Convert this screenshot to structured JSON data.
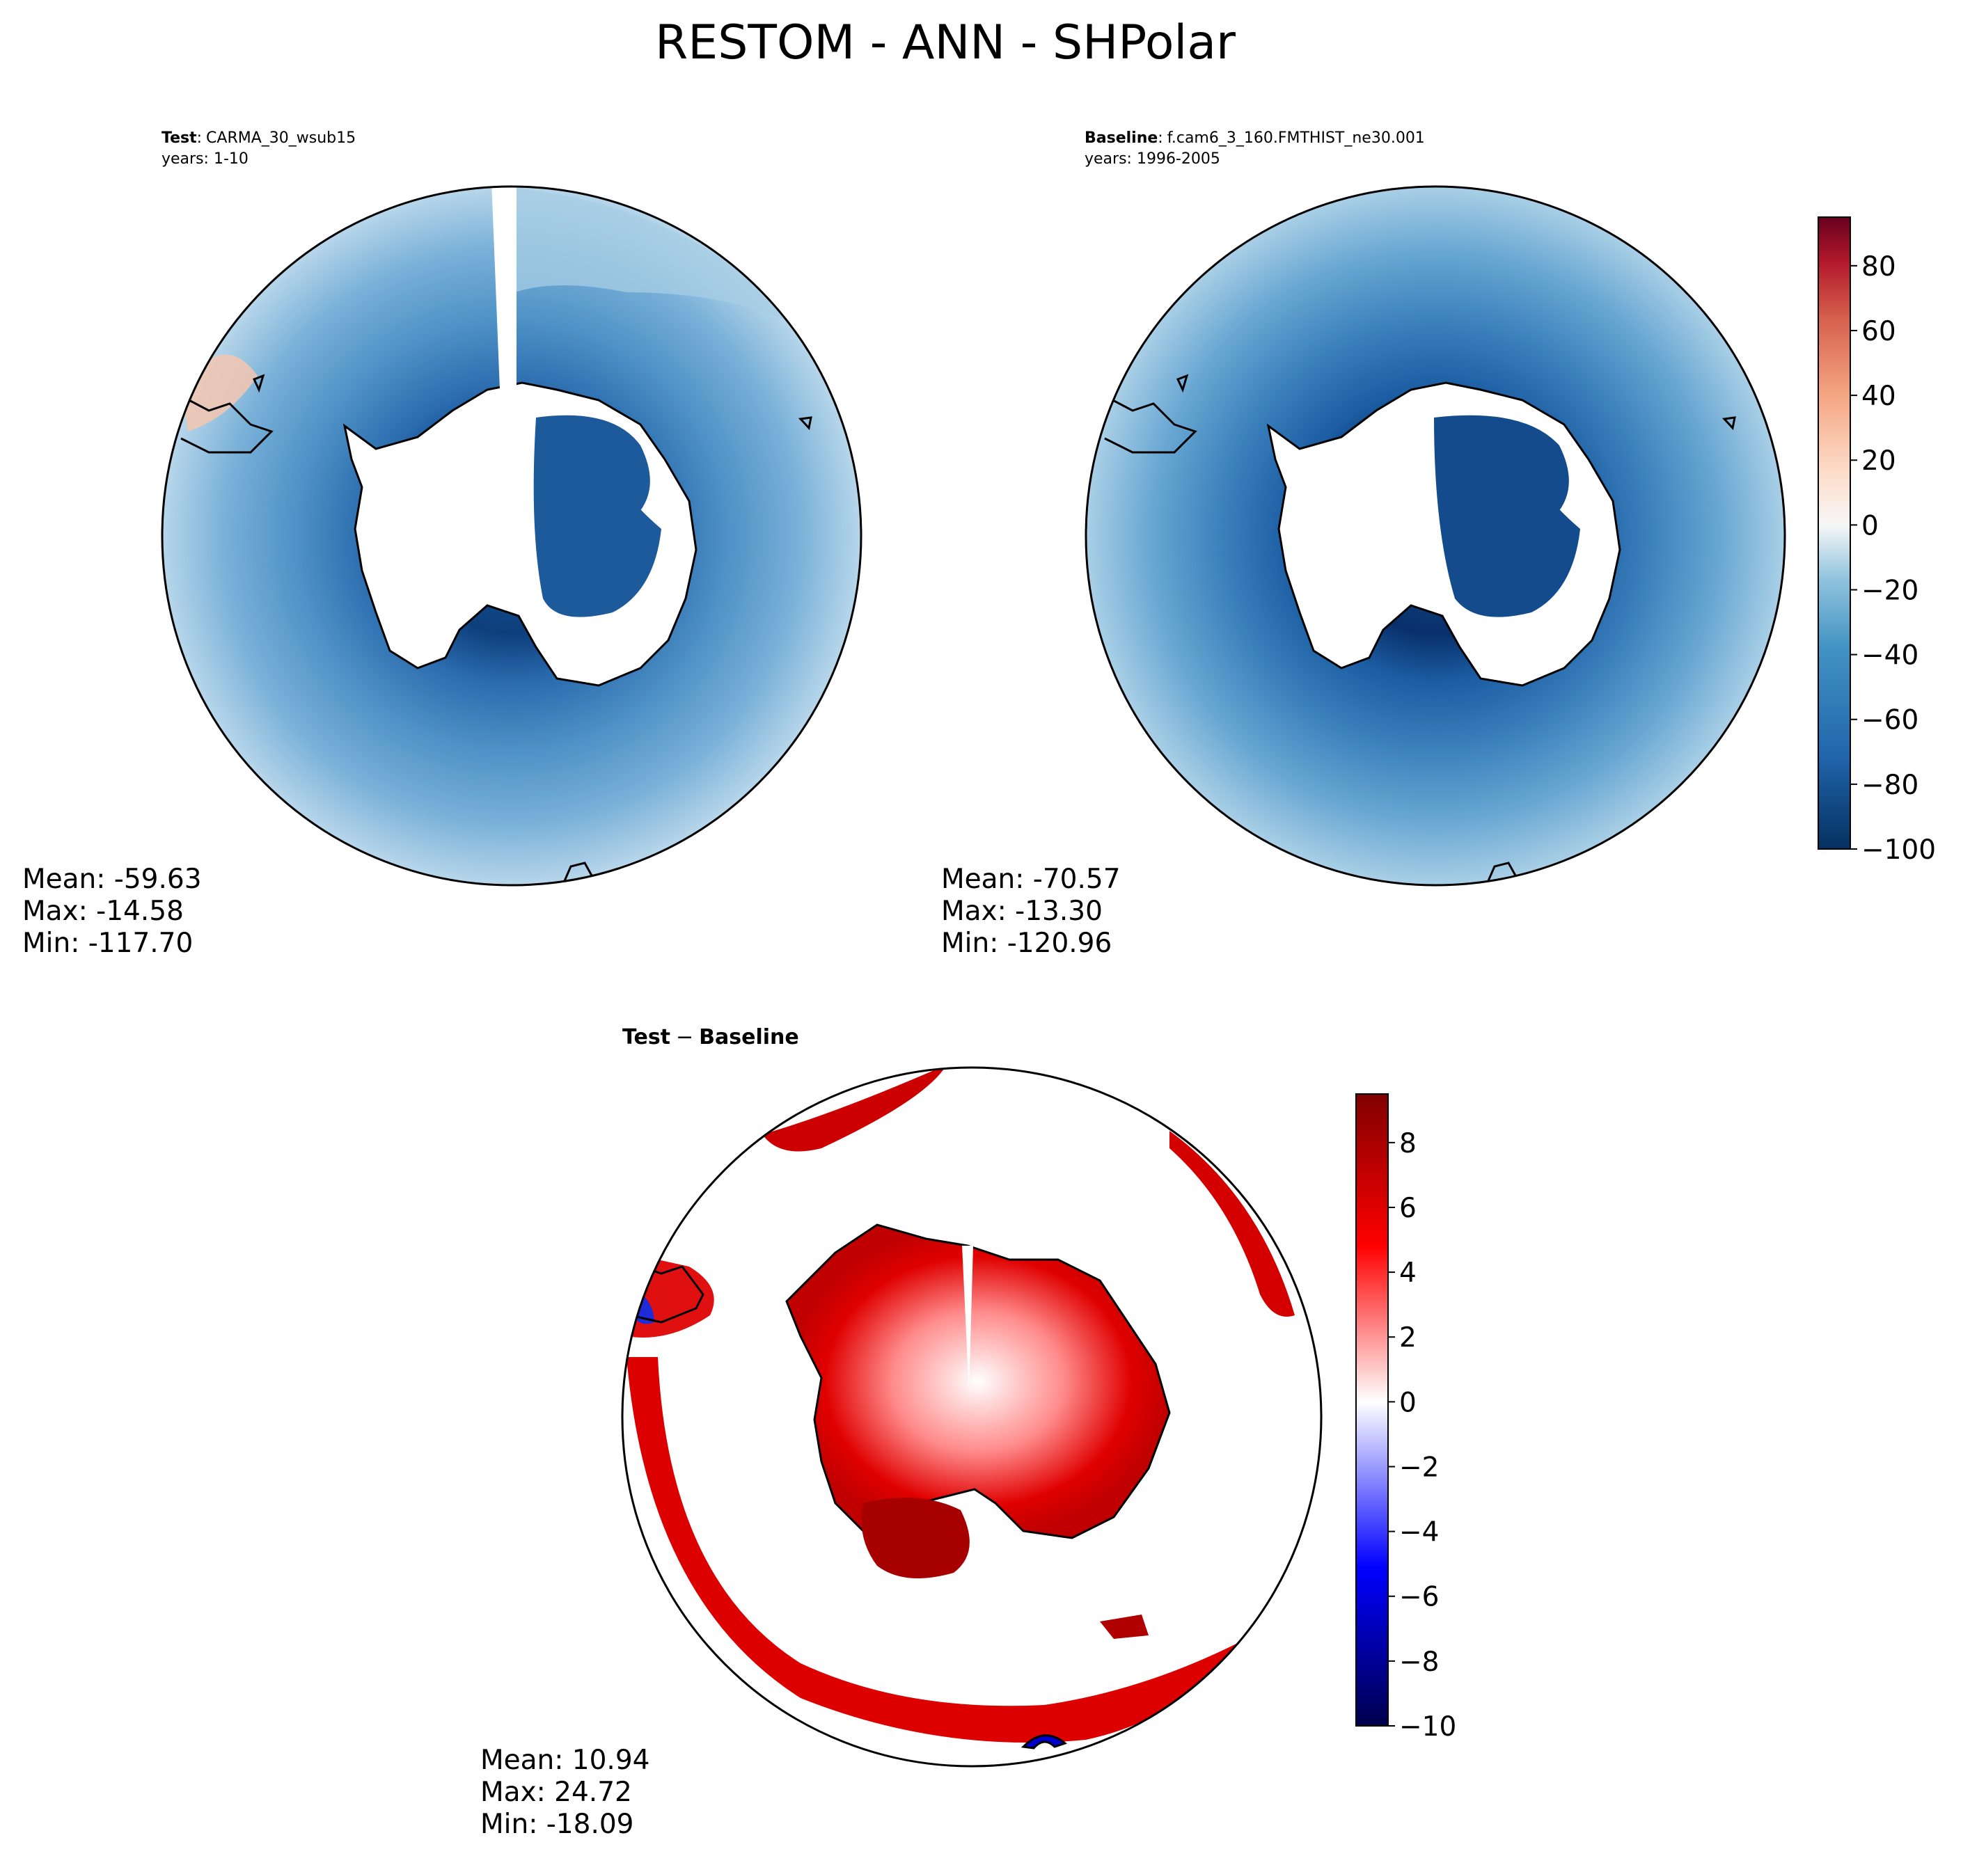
{
  "figure": {
    "title": "RESTOM - ANN - SHPolar"
  },
  "panels": {
    "test": {
      "label_bold": "Test",
      "label_sep": ":",
      "case_name": "CARMA_30_wsub15",
      "years": "years: 1-10",
      "stats": {
        "mean": "Mean: -59.63",
        "max": "Max: -14.58",
        "min": "Min: -117.70"
      }
    },
    "baseline": {
      "label_bold": "Baseline",
      "label_sep": ":",
      "case_name": "f.cam6_3_160.FMTHIST_ne30.001",
      "years": "years: 1996-2005",
      "stats": {
        "mean": "Mean: -70.57",
        "max": "Max: -13.30",
        "min": "Min: -120.96"
      }
    },
    "diff": {
      "label_left": "Test",
      "label_minus": "−",
      "label_right": "Baseline",
      "stats": {
        "mean": "Mean: 10.94",
        "max": "Max: 24.72",
        "min": "Min: -18.09"
      }
    }
  },
  "colors": {
    "deep_blue": "#08306b",
    "mid_blue": "#2f6fb0",
    "light_blue": "#9ecae1",
    "white": "#ffffff",
    "red": "#d7191c",
    "dark_red": "#8b0000",
    "coast": "#000000"
  },
  "chart_data": [
    {
      "type": "heatmap",
      "panel": "test",
      "projection": "south polar stereographic",
      "colormap": "RdBu_r",
      "levels_range": [
        -100,
        95
      ],
      "stats": {
        "mean": -59.63,
        "max": -14.58,
        "min": -117.7
      }
    },
    {
      "type": "heatmap",
      "panel": "baseline",
      "projection": "south polar stereographic",
      "colormap": "RdBu_r",
      "levels_range": [
        -100,
        95
      ],
      "colorbar_ticks": [
        "80",
        "60",
        "40",
        "20",
        "0",
        "−20",
        "−40",
        "−60",
        "−80",
        "−100"
      ],
      "stats": {
        "mean": -70.57,
        "max": -13.3,
        "min": -120.96
      }
    },
    {
      "type": "heatmap",
      "panel": "diff",
      "projection": "south polar stereographic",
      "colormap": "seismic",
      "levels_range": [
        -10,
        9.5
      ],
      "colorbar_ticks": [
        "8",
        "6",
        "4",
        "2",
        "0",
        "−2",
        "−4",
        "−6",
        "−8",
        "−10"
      ],
      "stats": {
        "mean": 10.94,
        "max": 24.72,
        "min": -18.09
      }
    }
  ]
}
